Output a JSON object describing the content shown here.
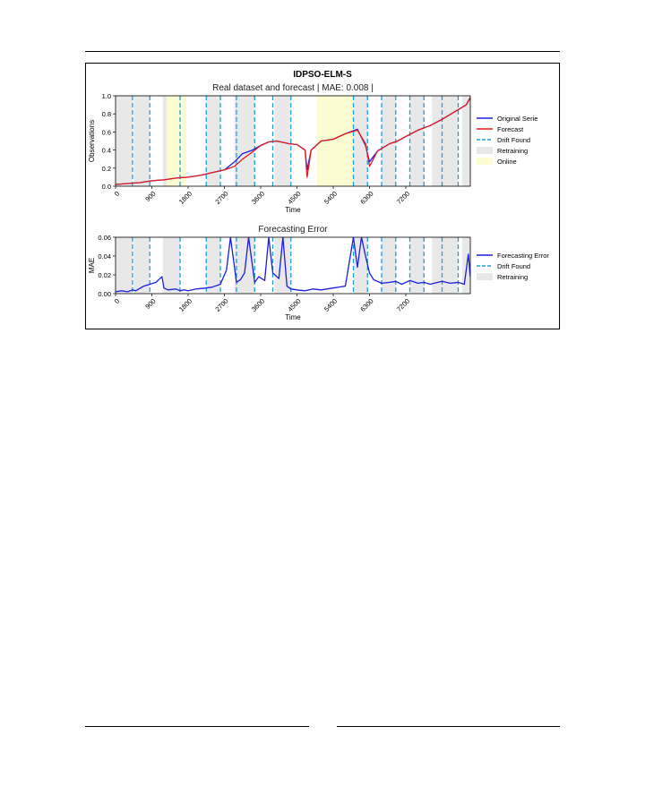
{
  "figure_title": "IDPSO-ELM-S",
  "colors": {
    "original": "#1d1de0",
    "forecast": "#e41a1c",
    "drift": "#1aa0e0",
    "retraining": "#e8e8e8",
    "online": "#fcfcd2"
  },
  "chart_data": [
    {
      "type": "line",
      "title": "Real dataset and forecast | MAE: 0.008 |",
      "xlabel": "Time",
      "ylabel": "Observations",
      "xlim": [
        0,
        8800
      ],
      "ylim": [
        0,
        1.0
      ],
      "x_ticks": [
        "0",
        "900",
        "1800",
        "2700",
        "3600",
        "4500",
        "5400",
        "6300",
        "7200"
      ],
      "x_tick_values": [
        0,
        900,
        1800,
        2700,
        3600,
        4500,
        5400,
        6300,
        7200
      ],
      "y_ticks": [
        "0.0",
        "0.2",
        "0.4",
        "0.6",
        "0.8",
        "1.0"
      ],
      "y_tick_values": [
        0,
        0.2,
        0.4,
        0.6,
        0.8,
        1.0
      ],
      "legend_position": "right",
      "legend": [
        "Original Serie",
        "Forecast",
        "Drift Found",
        "Retraining",
        "Online"
      ],
      "drift_points": [
        420,
        850,
        1600,
        2250,
        2600,
        3000,
        3450,
        3900,
        4350,
        5900,
        6250,
        6600,
        6950,
        7300,
        7650,
        8100,
        8500
      ],
      "retraining_regions": [
        [
          0,
          420
        ],
        [
          450,
          850
        ],
        [
          1170,
          1600
        ],
        [
          2250,
          2600
        ],
        [
          2950,
          3450
        ],
        [
          3950,
          4350
        ],
        [
          5900,
          6250
        ],
        [
          6600,
          6950
        ],
        [
          7300,
          7650
        ],
        [
          7850,
          8500
        ],
        [
          8600,
          8800
        ]
      ],
      "online_regions": [
        [
          1270,
          1750
        ],
        [
          5000,
          5900
        ]
      ],
      "series": [
        {
          "name": "Original Serie",
          "x": [
            0,
            300,
            600,
            900,
            1200,
            1500,
            1800,
            2100,
            2400,
            2700,
            2950,
            3150,
            3400,
            3600,
            3800,
            4000,
            4300,
            4500,
            4700,
            4750,
            4850,
            5100,
            5400,
            5700,
            6000,
            6200,
            6300,
            6500,
            6800,
            7000,
            7200,
            7500,
            7800,
            8100,
            8400,
            8700,
            8800
          ],
          "y": [
            0.02,
            0.03,
            0.04,
            0.06,
            0.07,
            0.09,
            0.1,
            0.12,
            0.15,
            0.18,
            0.27,
            0.36,
            0.4,
            0.45,
            0.49,
            0.5,
            0.47,
            0.46,
            0.4,
            0.18,
            0.4,
            0.5,
            0.52,
            0.58,
            0.63,
            0.45,
            0.27,
            0.39,
            0.47,
            0.5,
            0.55,
            0.62,
            0.67,
            0.74,
            0.82,
            0.9,
            0.98
          ]
        },
        {
          "name": "Forecast",
          "x": [
            0,
            300,
            600,
            900,
            1200,
            1500,
            1800,
            2100,
            2400,
            2700,
            2950,
            3150,
            3400,
            3600,
            3800,
            4000,
            4300,
            4500,
            4700,
            4750,
            4850,
            5100,
            5400,
            5700,
            6000,
            6200,
            6300,
            6500,
            6800,
            7000,
            7200,
            7500,
            7800,
            8100,
            8400,
            8700,
            8800
          ],
          "y": [
            0.02,
            0.03,
            0.04,
            0.06,
            0.07,
            0.09,
            0.1,
            0.12,
            0.15,
            0.18,
            0.22,
            0.3,
            0.38,
            0.45,
            0.49,
            0.5,
            0.47,
            0.46,
            0.4,
            0.1,
            0.4,
            0.5,
            0.52,
            0.58,
            0.62,
            0.47,
            0.22,
            0.39,
            0.47,
            0.5,
            0.55,
            0.62,
            0.67,
            0.74,
            0.82,
            0.9,
            0.98
          ]
        }
      ]
    },
    {
      "type": "line",
      "title": "Forecasting Error",
      "xlabel": "Time",
      "ylabel": "MAE",
      "xlim": [
        0,
        8800
      ],
      "ylim": [
        0,
        0.06
      ],
      "x_ticks": [
        "0",
        "900",
        "1800",
        "2700",
        "3600",
        "4500",
        "5400",
        "6300",
        "7200"
      ],
      "x_tick_values": [
        0,
        900,
        1800,
        2700,
        3600,
        4500,
        5400,
        6300,
        7200
      ],
      "y_ticks": [
        "0.00",
        "0.02",
        "0.04",
        "0.06"
      ],
      "y_tick_values": [
        0,
        0.02,
        0.04,
        0.06
      ],
      "legend_position": "right",
      "legend": [
        "Forecasting Error",
        "Drift Found",
        "Retraining"
      ],
      "drift_points": [
        420,
        850,
        1600,
        2250,
        2600,
        3000,
        3450,
        3900,
        4350,
        5900,
        6250,
        6600,
        6950,
        7300,
        7650,
        8100,
        8500
      ],
      "retraining_regions": [
        [
          0,
          420
        ],
        [
          450,
          850
        ],
        [
          1170,
          1600
        ],
        [
          2250,
          2600
        ],
        [
          2950,
          3450
        ],
        [
          3950,
          4350
        ],
        [
          5900,
          6250
        ],
        [
          6600,
          6950
        ],
        [
          7300,
          7650
        ],
        [
          7850,
          8500
        ],
        [
          8600,
          8800
        ]
      ],
      "series": [
        {
          "name": "Forecasting Error",
          "x": [
            0,
            150,
            300,
            420,
            500,
            700,
            850,
            1000,
            1100,
            1150,
            1200,
            1300,
            1500,
            1600,
            1700,
            1800,
            2000,
            2250,
            2400,
            2600,
            2750,
            2850,
            3000,
            3100,
            3200,
            3300,
            3450,
            3550,
            3700,
            3800,
            3900,
            4050,
            4150,
            4250,
            4350,
            4500,
            4700,
            4900,
            5100,
            5400,
            5700,
            5900,
            6000,
            6100,
            6200,
            6300,
            6400,
            6600,
            6800,
            6950,
            7100,
            7300,
            7500,
            7650,
            7800,
            8100,
            8300,
            8500,
            8650,
            8750,
            8800
          ],
          "y": [
            0.002,
            0.003,
            0.002,
            0.004,
            0.003,
            0.008,
            0.01,
            0.012,
            0.016,
            0.018,
            0.006,
            0.004,
            0.005,
            0.003,
            0.004,
            0.003,
            0.005,
            0.006,
            0.007,
            0.01,
            0.025,
            0.06,
            0.012,
            0.015,
            0.022,
            0.06,
            0.012,
            0.018,
            0.014,
            0.06,
            0.022,
            0.016,
            0.06,
            0.008,
            0.005,
            0.004,
            0.003,
            0.005,
            0.004,
            0.006,
            0.008,
            0.06,
            0.028,
            0.06,
            0.04,
            0.022,
            0.015,
            0.011,
            0.012,
            0.013,
            0.01,
            0.014,
            0.011,
            0.012,
            0.01,
            0.013,
            0.011,
            0.012,
            0.01,
            0.042,
            0.018
          ]
        }
      ]
    }
  ]
}
